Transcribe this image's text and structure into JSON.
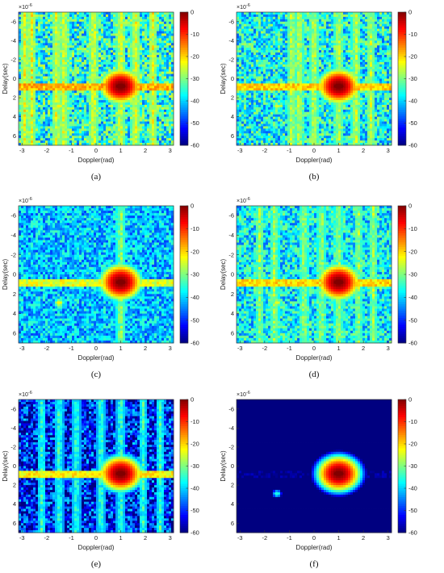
{
  "chart_data": [
    {
      "type": "heatmap",
      "caption": "(a)",
      "xlabel": "Doppler(rad)",
      "ylabel": "Delay(sec)",
      "y_exponent": "×10^{-6}",
      "xlim": [
        -3.14,
        3.14
      ],
      "ylim": [
        -7,
        7
      ],
      "y_reversed": true,
      "xticks": [
        "-3",
        "-2",
        "-1",
        "0",
        "1",
        "2",
        "3"
      ],
      "yticks": [
        "-6",
        "-4",
        "-2",
        "0",
        "2",
        "4",
        "6"
      ],
      "colorbar": {
        "range": [
          -60,
          0
        ],
        "ticks": [
          "0",
          "-10",
          "-20",
          "-30",
          "-40",
          "-50",
          "-60"
        ],
        "colormap": "jet"
      },
      "background_db": -36,
      "noise_db": 11,
      "ridge_db": -18,
      "streaks_x": [
        -2.9,
        -2.6,
        -1.6,
        -1.3,
        -0.1,
        1.0,
        1.6,
        2.3
      ],
      "streak_db": -24,
      "peaks": [
        {
          "x": 1.0,
          "y": 0.8,
          "value": 0
        },
        {
          "x": -1.5,
          "y": 2.9,
          "value": -22
        }
      ]
    },
    {
      "type": "heatmap",
      "caption": "(b)",
      "xlabel": "Doppler(rad)",
      "ylabel": "Delay(sec)",
      "y_exponent": "×10^{-6}",
      "xlim": [
        -3.14,
        3.14
      ],
      "ylim": [
        -7,
        7
      ],
      "y_reversed": true,
      "xticks": [
        "-3",
        "-2",
        "-1",
        "0",
        "1",
        "2",
        "3"
      ],
      "yticks": [
        "-6",
        "-4",
        "-2",
        "0",
        "2",
        "4",
        "6"
      ],
      "colorbar": {
        "range": [
          -60,
          0
        ],
        "ticks": [
          "0",
          "-10",
          "-20",
          "-30",
          "-40",
          "-50",
          "-60"
        ],
        "colormap": "jet"
      },
      "background_db": -37,
      "noise_db": 10,
      "ridge_db": -20,
      "streaks_x": [
        -0.9,
        -0.6,
        0.0,
        1.0,
        1.7,
        2.3
      ],
      "streak_db": -26,
      "peaks": [
        {
          "x": 1.0,
          "y": 0.8,
          "value": 0
        },
        {
          "x": -1.5,
          "y": 2.9,
          "value": -25
        }
      ]
    },
    {
      "type": "heatmap",
      "caption": "(c)",
      "xlabel": "Doppler(rad)",
      "ylabel": "Delay(sec)",
      "y_exponent": "×10^{-6}",
      "xlim": [
        -3.14,
        3.14
      ],
      "ylim": [
        -7,
        7
      ],
      "y_reversed": true,
      "xticks": [
        "-3",
        "-2",
        "-1",
        "0",
        "1",
        "2",
        "3"
      ],
      "yticks": [
        "-6",
        "-4",
        "-2",
        "0",
        "2",
        "4",
        "6"
      ],
      "colorbar": {
        "range": [
          -60,
          0
        ],
        "ticks": [
          "0",
          "-10",
          "-20",
          "-30",
          "-40",
          "-50",
          "-60"
        ],
        "colormap": "jet"
      },
      "background_db": -41,
      "noise_db": 8,
      "ridge_db": -24,
      "streaks_x": [
        1.0
      ],
      "streak_db": -28,
      "peaks": [
        {
          "x": 1.0,
          "y": 0.8,
          "value": 0
        },
        {
          "x": -1.5,
          "y": 2.9,
          "value": -22
        }
      ]
    },
    {
      "type": "heatmap",
      "caption": "(d)",
      "xlabel": "Doppler(rad)",
      "ylabel": "Delay(sec)",
      "y_exponent": "×10^{-6}",
      "xlim": [
        -3.14,
        3.14
      ],
      "ylim": [
        -7,
        7
      ],
      "y_reversed": true,
      "xticks": [
        "-3",
        "-2",
        "-1",
        "0",
        "1",
        "2",
        "3"
      ],
      "yticks": [
        "-6",
        "-4",
        "-2",
        "0",
        "2",
        "4",
        "6"
      ],
      "colorbar": {
        "range": [
          -60,
          0
        ],
        "ticks": [
          "0",
          "-10",
          "-20",
          "-30",
          "-40",
          "-50",
          "-60"
        ],
        "colormap": "jet"
      },
      "background_db": -38,
      "noise_db": 9,
      "ridge_db": -21,
      "streaks_x": [
        -2.2,
        -1.6,
        -0.4,
        0.3,
        1.0,
        1.8,
        2.4
      ],
      "streak_db": -28,
      "peaks": [
        {
          "x": 1.0,
          "y": 0.8,
          "value": 0
        },
        {
          "x": -1.5,
          "y": 2.9,
          "value": -24
        }
      ]
    },
    {
      "type": "heatmap",
      "caption": "(e)",
      "xlabel": "Doppler(rad)",
      "ylabel": "Delay(sec)",
      "y_exponent": "×10^{-6}",
      "xlim": [
        -3.14,
        3.14
      ],
      "ylim": [
        -7,
        7
      ],
      "y_reversed": true,
      "xticks": [
        "-3",
        "-2",
        "-1",
        "0",
        "1",
        "2",
        "3"
      ],
      "yticks": [
        "-6",
        "-4",
        "-2",
        "0",
        "2",
        "4",
        "6"
      ],
      "colorbar": {
        "range": [
          -60,
          0
        ],
        "ticks": [
          "0",
          "-10",
          "-20",
          "-30",
          "-40",
          "-50",
          "-60"
        ],
        "colormap": "jet"
      },
      "background_db": -52,
      "noise_db": 13,
      "ridge_db": -22,
      "streaks_x": [
        -2.2,
        -1.5,
        -0.8,
        0.2,
        1.0,
        1.9,
        2.6
      ],
      "streak_db": -34,
      "peaks": [
        {
          "x": 1.0,
          "y": 0.8,
          "value": 0
        },
        {
          "x": -1.5,
          "y": 2.9,
          "value": -40
        }
      ]
    },
    {
      "type": "heatmap",
      "caption": "(f)",
      "xlabel": "Doppler(rad)",
      "ylabel": "Delay(sec)",
      "y_exponent": "×10^{-6}",
      "xlim": [
        -3.14,
        3.14
      ],
      "ylim": [
        -7,
        7
      ],
      "y_reversed": true,
      "xticks": [
        "-3",
        "-2",
        "-1",
        "0",
        "1",
        "2",
        "3"
      ],
      "yticks": [
        "-6",
        "-4",
        "-2",
        "0",
        "2",
        "4",
        "6"
      ],
      "colorbar": {
        "range": [
          -60,
          0
        ],
        "ticks": [
          "0",
          "-10",
          "-20",
          "-30",
          "-40",
          "-50",
          "-60"
        ],
        "colormap": "jet"
      },
      "background_db": -60,
      "noise_db": 0,
      "ridge_db": -60,
      "streaks_x": [],
      "streak_db": -60,
      "peaks": [
        {
          "x": 1.0,
          "y": 0.8,
          "value": 0
        },
        {
          "x": -1.5,
          "y": 2.9,
          "value": -36
        }
      ]
    }
  ]
}
